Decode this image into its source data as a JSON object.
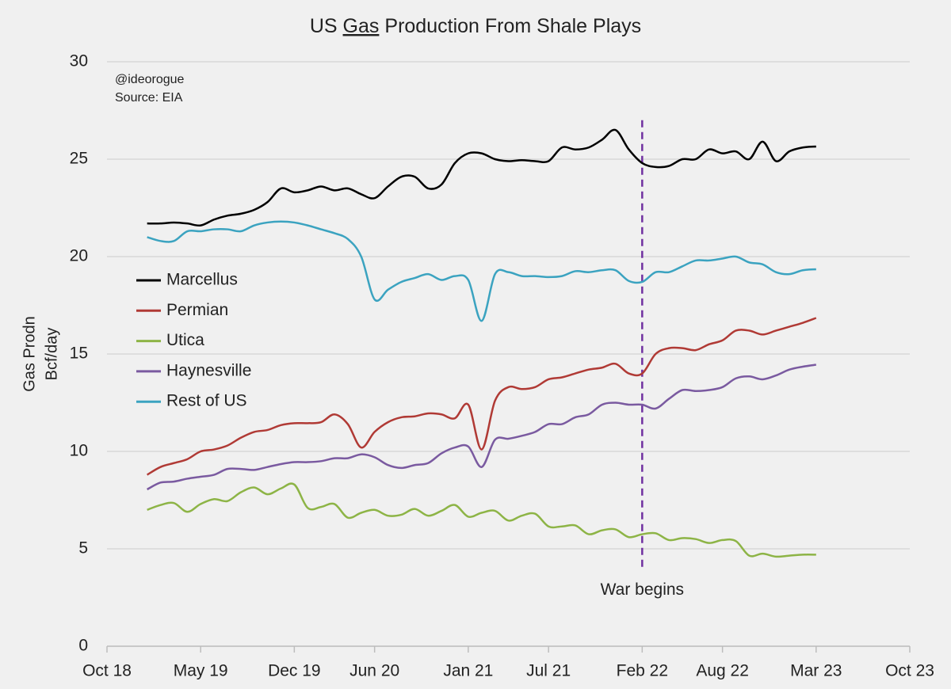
{
  "chart_data": {
    "type": "line",
    "title": [
      "US",
      "Gas",
      "Production From Shale Plays"
    ],
    "y_label": [
      "Gas Prodn",
      "Bcf/day"
    ],
    "notes": [
      "@ideorogue",
      "Source: EIA"
    ],
    "annotation": {
      "text": "War begins",
      "x": "2022-02",
      "y_range": [
        4,
        27
      ],
      "color": "#7030a0"
    },
    "x": [
      "2019-01",
      "2019-02",
      "2019-03",
      "2019-04",
      "2019-05",
      "2019-06",
      "2019-07",
      "2019-08",
      "2019-09",
      "2019-10",
      "2019-11",
      "2019-12",
      "2020-01",
      "2020-02",
      "2020-03",
      "2020-04",
      "2020-05",
      "2020-06",
      "2020-07",
      "2020-08",
      "2020-09",
      "2020-10",
      "2020-11",
      "2020-12",
      "2021-01",
      "2021-02",
      "2021-03",
      "2021-04",
      "2021-05",
      "2021-06",
      "2021-07",
      "2021-08",
      "2021-09",
      "2021-10",
      "2021-11",
      "2021-12",
      "2022-01",
      "2022-02",
      "2022-03",
      "2022-04",
      "2022-05",
      "2022-06",
      "2022-07",
      "2022-08",
      "2022-09",
      "2022-10",
      "2022-11",
      "2022-12",
      "2023-01",
      "2023-02",
      "2023-03"
    ],
    "series": [
      {
        "name": "Marcellus",
        "color": "#000000",
        "values": [
          21.7,
          21.7,
          21.75,
          21.7,
          21.6,
          21.9,
          22.1,
          22.2,
          22.4,
          22.8,
          23.5,
          23.3,
          23.4,
          23.6,
          23.4,
          23.5,
          23.2,
          23.0,
          23.6,
          24.1,
          24.1,
          23.5,
          23.7,
          24.8,
          25.3,
          25.3,
          25.0,
          24.9,
          24.95,
          24.9,
          24.9,
          25.6,
          25.5,
          25.6,
          26.0,
          26.5,
          25.5,
          24.8,
          24.6,
          24.65,
          25.0,
          25.0,
          25.5,
          25.3,
          25.4,
          25.0,
          25.9,
          24.9,
          25.4,
          25.6,
          25.65
        ]
      },
      {
        "name": "Permian",
        "color": "#b03a35",
        "values": [
          8.8,
          9.2,
          9.4,
          9.6,
          10.0,
          10.1,
          10.3,
          10.7,
          11.0,
          11.1,
          11.35,
          11.45,
          11.45,
          11.5,
          11.9,
          11.4,
          10.2,
          11.0,
          11.5,
          11.75,
          11.8,
          11.95,
          11.9,
          11.7,
          12.4,
          10.1,
          12.6,
          13.3,
          13.2,
          13.3,
          13.7,
          13.8,
          14.0,
          14.2,
          14.3,
          14.5,
          14.0,
          14.0,
          15.0,
          15.3,
          15.3,
          15.2,
          15.5,
          15.7,
          16.2,
          16.2,
          16.0,
          16.2,
          16.4,
          16.6,
          16.85
        ]
      },
      {
        "name": "Utica",
        "color": "#8db446",
        "values": [
          7.0,
          7.25,
          7.35,
          6.9,
          7.3,
          7.55,
          7.45,
          7.9,
          8.15,
          7.8,
          8.1,
          8.3,
          7.1,
          7.15,
          7.3,
          6.6,
          6.85,
          7.0,
          6.7,
          6.75,
          7.05,
          6.7,
          6.95,
          7.25,
          6.65,
          6.85,
          6.95,
          6.45,
          6.7,
          6.8,
          6.15,
          6.15,
          6.2,
          5.75,
          5.95,
          6.0,
          5.6,
          5.75,
          5.8,
          5.45,
          5.55,
          5.5,
          5.3,
          5.45,
          5.4,
          4.65,
          4.75,
          4.6,
          4.65,
          4.7,
          4.7
        ]
      },
      {
        "name": "Haynesville",
        "color": "#7a5aa0",
        "values": [
          8.05,
          8.4,
          8.45,
          8.6,
          8.7,
          8.8,
          9.1,
          9.1,
          9.05,
          9.2,
          9.35,
          9.45,
          9.45,
          9.5,
          9.65,
          9.65,
          9.85,
          9.7,
          9.3,
          9.15,
          9.3,
          9.4,
          9.9,
          10.2,
          10.25,
          9.2,
          10.6,
          10.65,
          10.8,
          11.0,
          11.4,
          11.4,
          11.75,
          11.9,
          12.4,
          12.5,
          12.4,
          12.4,
          12.2,
          12.7,
          13.15,
          13.1,
          13.15,
          13.3,
          13.75,
          13.85,
          13.7,
          13.9,
          14.2,
          14.35,
          14.45
        ]
      },
      {
        "name": "Rest of US",
        "color": "#3ba3c0",
        "values": [
          21.0,
          20.8,
          20.8,
          21.3,
          21.3,
          21.4,
          21.4,
          21.3,
          21.6,
          21.75,
          21.8,
          21.75,
          21.6,
          21.4,
          21.2,
          20.9,
          20.0,
          17.8,
          18.3,
          18.7,
          18.9,
          19.1,
          18.8,
          19.0,
          18.8,
          16.7,
          19.1,
          19.2,
          19.0,
          19.0,
          18.95,
          19.0,
          19.25,
          19.2,
          19.3,
          19.3,
          18.75,
          18.7,
          19.2,
          19.2,
          19.5,
          19.8,
          19.8,
          19.9,
          20.0,
          19.7,
          19.6,
          19.2,
          19.1,
          19.3,
          19.35
        ]
      }
    ],
    "xlim": [
      "2018-10",
      "2023-10"
    ],
    "xticks": [
      {
        "value": "2018-10",
        "label": "Oct 18"
      },
      {
        "value": "2019-05",
        "label": "May 19"
      },
      {
        "value": "2019-12",
        "label": "Dec 19"
      },
      {
        "value": "2020-06",
        "label": "Jun 20"
      },
      {
        "value": "2021-01",
        "label": "Jan 21"
      },
      {
        "value": "2021-07",
        "label": "Jul 21"
      },
      {
        "value": "2022-02",
        "label": "Feb 22"
      },
      {
        "value": "2022-08",
        "label": "Aug 22"
      },
      {
        "value": "2023-03",
        "label": "Mar 23"
      },
      {
        "value": "2023-10",
        "label": "Oct 23"
      }
    ],
    "ylim": [
      0,
      30
    ],
    "yticks": [
      0,
      5,
      10,
      15,
      20,
      25,
      30
    ],
    "grid": true,
    "legend": "left"
  }
}
